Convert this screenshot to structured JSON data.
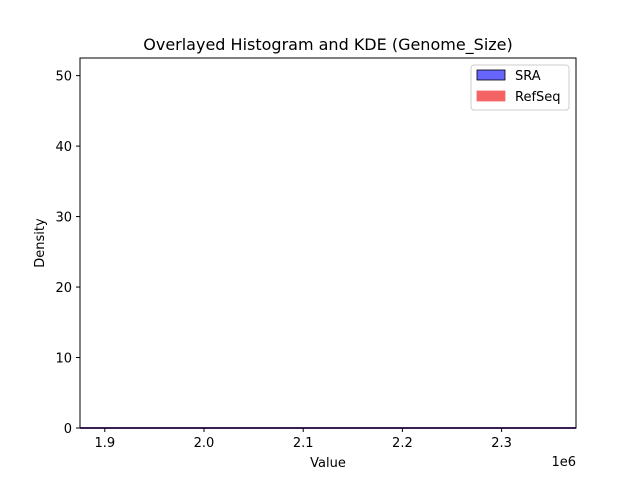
{
  "chart_data": {
    "type": "area",
    "title": "Overlayed Histogram and KDE (Genome_Size)",
    "xlabel": "Value",
    "ylabel": "Density",
    "x_offset_label": "1e6",
    "xlim": [
      1875000,
      2375000
    ],
    "ylim": [
      0,
      52.5
    ],
    "x_ticks": [
      {
        "value": 1900000,
        "label": "1.9"
      },
      {
        "value": 2000000,
        "label": "2.0"
      },
      {
        "value": 2100000,
        "label": "2.1"
      },
      {
        "value": 2200000,
        "label": "2.2"
      },
      {
        "value": 2300000,
        "label": "2.3"
      }
    ],
    "y_ticks": [
      {
        "value": 0,
        "label": "0"
      },
      {
        "value": 10,
        "label": "10"
      },
      {
        "value": 20,
        "label": "20"
      },
      {
        "value": 30,
        "label": "30"
      },
      {
        "value": 40,
        "label": "40"
      },
      {
        "value": 50,
        "label": "50"
      }
    ],
    "grid": false,
    "legend_position": "top-right",
    "series": [
      {
        "name": "SRA",
        "color": "#6666ff",
        "edge_color": "#000000",
        "line_color": "#0000cc",
        "x": [
          1875000,
          2375000
        ],
        "values": [
          0,
          0
        ]
      },
      {
        "name": "RefSeq",
        "color": "#f46464",
        "edge_color": "#f46464",
        "line_color": "#cc0000",
        "x": [
          1875000,
          2375000
        ],
        "values": [
          0,
          0
        ]
      }
    ]
  }
}
